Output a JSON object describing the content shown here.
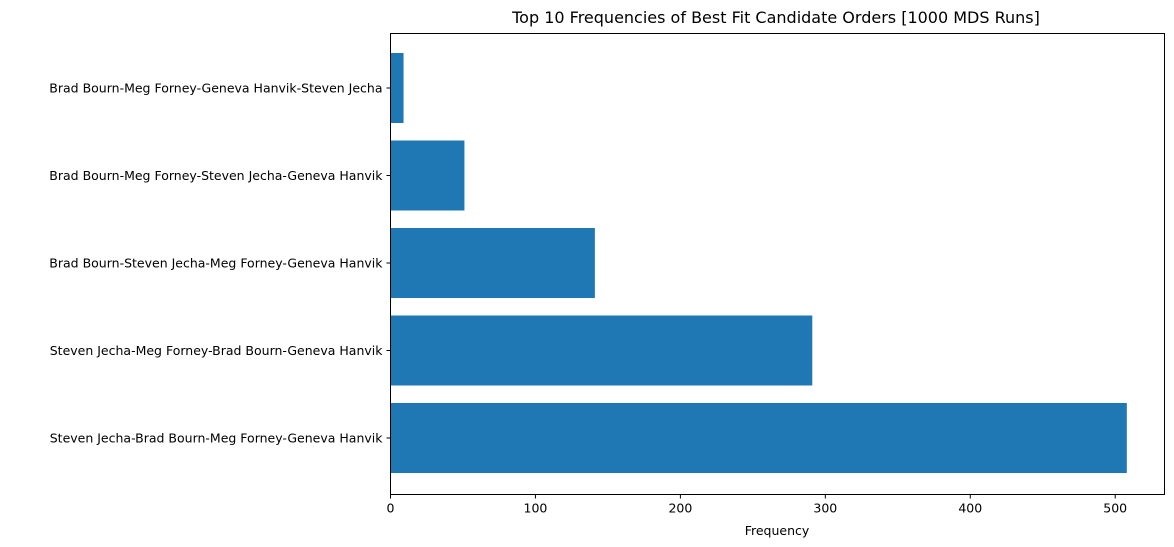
{
  "chart_data": {
    "type": "bar",
    "orientation": "horizontal",
    "title": "Top 10 Frequencies of Best Fit Candidate Orders [1000 MDS Runs]",
    "xlabel": "Frequency",
    "ylabel": "",
    "categories": [
      "Steven Jecha-Brad Bourn-Meg Forney-Geneva Hanvik",
      "Steven Jecha-Meg Forney-Brad Bourn-Geneva Hanvik",
      "Brad Bourn-Steven Jecha-Meg Forney-Geneva Hanvik",
      "Brad Bourn-Meg Forney-Steven Jecha-Geneva Hanvik",
      "Brad Bourn-Meg Forney-Geneva Hanvik-Steven Jecha"
    ],
    "values": [
      508,
      291,
      141,
      51,
      9
    ],
    "xlim": [
      0,
      534
    ],
    "xticks": [
      0,
      100,
      200,
      300,
      400,
      500
    ],
    "grid": false,
    "bar_color": "#1f77b4"
  }
}
